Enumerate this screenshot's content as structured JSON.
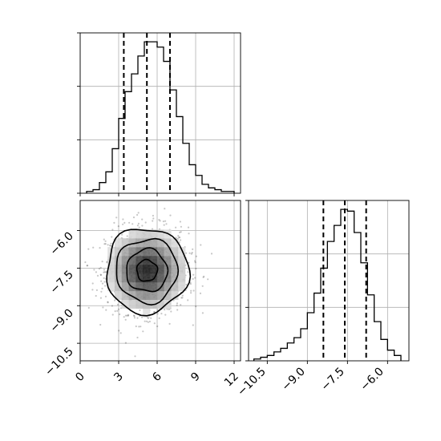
{
  "chart_data": [
    {
      "type": "histogram",
      "panel": "top-left",
      "xlim": [
        0,
        12.5
      ],
      "x_ticks": [
        "0",
        "3",
        "6",
        "9",
        "12"
      ],
      "bin_edges": [
        0.5,
        1.0,
        1.5,
        2.0,
        2.5,
        3.0,
        3.5,
        4.0,
        4.5,
        5.0,
        5.5,
        6.0,
        6.5,
        7.0,
        7.5,
        8.0,
        8.5,
        9.0,
        9.5,
        10.0,
        10.5,
        11.0,
        11.5,
        12.0
      ],
      "counts": [
        1,
        2,
        6,
        12,
        25,
        42,
        57,
        67,
        77,
        85,
        85,
        82,
        74,
        58,
        43,
        28,
        16,
        10,
        5,
        3,
        2,
        1,
        1
      ],
      "ylim": [
        0,
        90
      ],
      "quantiles": [
        3.4,
        5.2,
        7.0
      ],
      "grid": true
    },
    {
      "type": "histogram",
      "panel": "bottom-right",
      "xlim": [
        -11.2,
        -5.2
      ],
      "x_ticks": [
        "−10.5",
        "−9.0",
        "−7.5",
        "−6.0"
      ],
      "bin_edges": [
        -11.0,
        -10.75,
        -10.5,
        -10.25,
        -10.0,
        -9.75,
        -9.5,
        -9.25,
        -9.0,
        -8.75,
        -8.5,
        -8.25,
        -8.0,
        -7.75,
        -7.5,
        -7.25,
        -7.0,
        -6.75,
        -6.5,
        -6.25,
        -6.0,
        -5.75,
        -5.5
      ],
      "counts": [
        1,
        2,
        3,
        5,
        7,
        10,
        13,
        18,
        27,
        38,
        52,
        67,
        76,
        85,
        84,
        72,
        55,
        37,
        22,
        12,
        6,
        3
      ],
      "ylim": [
        0,
        90
      ],
      "quantiles": [
        -8.4,
        -7.6,
        -6.8
      ],
      "grid": true
    },
    {
      "type": "scatter",
      "panel": "bottom-left",
      "xlim": [
        0,
        12.5
      ],
      "ylim": [
        -11.2,
        -4.8
      ],
      "x_ticks": [
        "0",
        "3",
        "6",
        "9",
        "12"
      ],
      "y_ticks": [
        "−6.0",
        "−7.5",
        "−9.0",
        "−10.5"
      ],
      "center": [
        5.2,
        -7.6
      ],
      "spread": [
        1.6,
        0.85
      ],
      "contour_levels_sigma": [
        0.5,
        1.0,
        1.5,
        2.0
      ],
      "grid": true
    }
  ],
  "ticks": {
    "tl_x": [
      "0",
      "3",
      "6",
      "9",
      "12"
    ],
    "bl_x": [
      "0",
      "3",
      "6",
      "9",
      "12"
    ],
    "bl_y": [
      "−6.0",
      "−7.5",
      "−9.0",
      "−10.5"
    ],
    "br_x": [
      "−10.5",
      "−9.0",
      "−7.5",
      "−6.0"
    ]
  }
}
